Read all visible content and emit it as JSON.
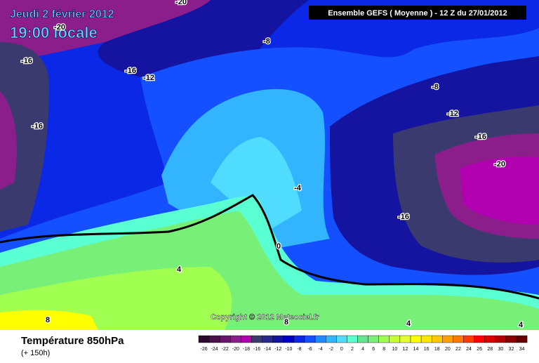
{
  "header": {
    "date": "Jeudi 2 février 2012",
    "time": "19:00 locale",
    "model": "Ensemble GEFS ( Moyenne )  -  12 Z du 27/01/2012"
  },
  "copyright": "Copyright © 2012 Meteociel.fr",
  "contour_labels": [
    "-20",
    "-20",
    "-8",
    "-16",
    "-16",
    "-12",
    "-8",
    "-12",
    "-16",
    "-20",
    "-16",
    "-4",
    "-16",
    "0",
    "4",
    "8",
    "8",
    "4",
    "4"
  ],
  "footer": {
    "title": "Température 850hPa",
    "lead": "(+ 150h)"
  },
  "legend": {
    "levels": [
      -26,
      -24,
      -22,
      -20,
      -18,
      -16,
      -14,
      -12,
      -10,
      -8,
      -6,
      -4,
      -2,
      0,
      2,
      4,
      6,
      8,
      10,
      12,
      14,
      16,
      18,
      20,
      22,
      24,
      26,
      28,
      30,
      32,
      34
    ],
    "colors": [
      "#2d0a2d",
      "#4b0f4b",
      "#6a146a",
      "#8c1e8c",
      "#b000b0",
      "#3a3a6e",
      "#2a2a8c",
      "#1414a0",
      "#0000c8",
      "#0a28e6",
      "#1450ff",
      "#1e8cff",
      "#32b4ff",
      "#50dcff",
      "#5affd2",
      "#64e68c",
      "#78f078",
      "#a0ff50",
      "#c8ff32",
      "#e6ff32",
      "#ffff00",
      "#ffe600",
      "#ffc800",
      "#ffa000",
      "#ff7800",
      "#ff3c00",
      "#ff0000",
      "#dc0000",
      "#b40000",
      "#8c0000",
      "#640000"
    ]
  }
}
